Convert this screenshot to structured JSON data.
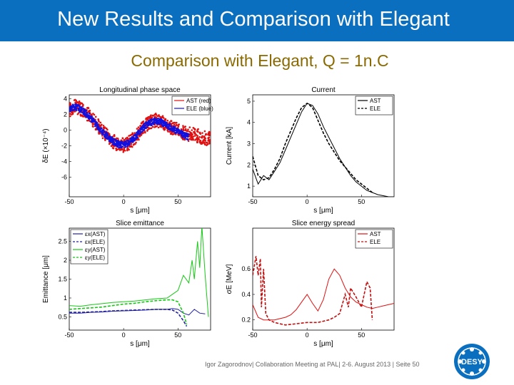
{
  "slide": {
    "title": "New Results and Comparison with Elegant",
    "subtitle": "Comparison with Elegant, Q = 1n.C",
    "footer": "Igor Zagorodnov| Collaboration Meeting at PAL| 2-6. August 2013 | Seite 50",
    "logo_text": "DESY"
  },
  "colors": {
    "title_bar": "#0b6fc0",
    "subtitle": "#8a6a00",
    "ast": "#e01010",
    "ele": "#1010e0",
    "green": "#18c818"
  },
  "chart_data": [
    {
      "type": "scatter",
      "title": "Longitudinal phase space",
      "xlabel": "s [μm]",
      "ylabel": "δE (×10⁻⁴)",
      "xlim": [
        -50,
        80
      ],
      "ylim": [
        -8.5,
        4.5
      ],
      "xticks": [
        "-50",
        "0",
        "50"
      ],
      "xtick_values": [
        -50,
        0,
        50
      ],
      "yticks": [
        "4",
        "2",
        "0",
        "-2",
        "-4",
        "-6"
      ],
      "ytick_values": [
        4,
        2,
        0,
        -2,
        -4,
        -6
      ],
      "legend": [
        "AST (red)",
        "ELE (blue)"
      ],
      "legend_position": "top-right",
      "series": [
        {
          "name": "AST (red)",
          "color": "#e01010",
          "x": [
            -50,
            -45,
            -40,
            -35,
            -30,
            -25,
            -20,
            -15,
            -10,
            -5,
            0,
            5,
            10,
            15,
            20,
            25,
            30,
            35,
            40,
            45,
            50,
            55,
            60,
            65,
            70,
            75,
            80
          ],
          "y": [
            2.5,
            3.0,
            2.8,
            2.3,
            1.6,
            0.8,
            0,
            -0.8,
            -1.4,
            -1.8,
            -1.9,
            -1.6,
            -1.0,
            -0.2,
            0.6,
            1.1,
            1.3,
            1.1,
            0.7,
            0.3,
            0,
            -0.3,
            -0.5,
            -0.6,
            -0.8,
            -1.0,
            -1.1
          ],
          "spread": 0.9
        },
        {
          "name": "ELE (blue)",
          "color": "#1010e0",
          "x": [
            -50,
            -45,
            -40,
            -35,
            -30,
            -25,
            -20,
            -15,
            -10,
            -5,
            0,
            5,
            10,
            15,
            20,
            25,
            30,
            35,
            40,
            45,
            50,
            55,
            60
          ],
          "y": [
            2.7,
            3.0,
            2.7,
            2.2,
            1.5,
            0.7,
            -0.1,
            -0.8,
            -1.4,
            -1.8,
            -1.9,
            -1.6,
            -1.0,
            -0.2,
            0.6,
            1.0,
            1.2,
            1.0,
            0.6,
            0.2,
            -0.2,
            -0.6,
            -0.9
          ],
          "spread": 0.4
        }
      ]
    },
    {
      "type": "line",
      "title": "Current",
      "xlabel": "s [μm]",
      "ylabel": "Current [kA]",
      "xlim": [
        -50,
        80
      ],
      "ylim": [
        0.5,
        5.3
      ],
      "xticks": [
        "-50",
        "0",
        "50"
      ],
      "xtick_values": [
        -50,
        0,
        50
      ],
      "yticks": [
        "5",
        "4",
        "3",
        "2",
        "1"
      ],
      "ytick_values": [
        5,
        4,
        3,
        2,
        1
      ],
      "legend": [
        "AST",
        "ELE"
      ],
      "legend_position": "top-right",
      "series": [
        {
          "name": "AST",
          "style": "solid",
          "x": [
            -50,
            -45,
            -40,
            -35,
            -30,
            -25,
            -20,
            -15,
            -10,
            -5,
            0,
            5,
            10,
            15,
            20,
            25,
            30,
            35,
            40,
            45,
            50,
            55,
            60,
            65,
            70,
            75,
            80
          ],
          "y": [
            1.8,
            1.1,
            1.5,
            1.3,
            1.7,
            2.1,
            2.7,
            3.3,
            3.9,
            4.5,
            4.9,
            4.8,
            4.4,
            3.8,
            3.3,
            2.8,
            2.3,
            1.9,
            1.5,
            1.2,
            1.0,
            0.8,
            0.7,
            0.6,
            0.55,
            0.5,
            0.5
          ]
        },
        {
          "name": "ELE",
          "style": "dashed",
          "x": [
            -50,
            -45,
            -40,
            -35,
            -30,
            -25,
            -20,
            -15,
            -10,
            -5,
            0,
            5,
            10,
            15,
            20,
            25,
            30,
            35,
            40,
            45,
            50,
            55,
            60
          ],
          "y": [
            2.4,
            1.5,
            1.3,
            1.4,
            1.8,
            2.3,
            3.0,
            3.6,
            4.2,
            4.7,
            4.9,
            4.7,
            4.1,
            3.5,
            3.0,
            2.6,
            2.2,
            1.9,
            1.6,
            1.3,
            1.1,
            0.9,
            0.7
          ]
        }
      ]
    },
    {
      "type": "line",
      "title": "Slice emittance",
      "xlabel": "s [μm]",
      "ylabel": "Emittance [μm]",
      "xlim": [
        -50,
        80
      ],
      "ylim": [
        0.15,
        2.85
      ],
      "xticks": [
        "-50",
        "0",
        "50"
      ],
      "xtick_values": [
        -50,
        0,
        50
      ],
      "yticks": [
        "2.5",
        "2",
        "1.5",
        "1",
        "0.5"
      ],
      "ytick_values": [
        2.5,
        2,
        1.5,
        1,
        0.5
      ],
      "legend": [
        "εx(AST)",
        "εx(ELE)",
        "εy(AST)",
        "εy(ELE)"
      ],
      "legend_position": "top-left",
      "series": [
        {
          "name": "εx(AST)",
          "color": "#2020a0",
          "style": "solid",
          "x": [
            -50,
            -40,
            -30,
            -20,
            -10,
            0,
            10,
            20,
            30,
            40,
            45,
            50,
            55,
            60,
            65,
            70,
            75
          ],
          "y": [
            0.6,
            0.6,
            0.62,
            0.63,
            0.65,
            0.66,
            0.67,
            0.68,
            0.7,
            0.7,
            0.72,
            0.7,
            0.6,
            0.55,
            0.7,
            0.6,
            0.58
          ]
        },
        {
          "name": "εx(ELE)",
          "color": "#2020a0",
          "style": "dashed",
          "x": [
            -50,
            -40,
            -30,
            -20,
            -10,
            0,
            10,
            20,
            30,
            40,
            45,
            50,
            55,
            58
          ],
          "y": [
            0.62,
            0.62,
            0.63,
            0.64,
            0.66,
            0.67,
            0.68,
            0.69,
            0.7,
            0.7,
            0.68,
            0.6,
            0.4,
            0.25
          ]
        },
        {
          "name": "εy(AST)",
          "color": "#18c818",
          "style": "solid",
          "x": [
            -50,
            -40,
            -30,
            -20,
            -10,
            0,
            10,
            20,
            30,
            40,
            45,
            50,
            55,
            60,
            63,
            65,
            68,
            70,
            72,
            75,
            78
          ],
          "y": [
            0.8,
            0.78,
            0.82,
            0.85,
            0.88,
            0.9,
            0.92,
            0.95,
            0.98,
            1.0,
            1.1,
            1.2,
            1.6,
            1.4,
            2.0,
            1.5,
            2.5,
            1.8,
            2.9,
            1.6,
            0.5
          ]
        },
        {
          "name": "εy(ELE)",
          "color": "#18c818",
          "style": "dashed",
          "x": [
            -50,
            -40,
            -30,
            -20,
            -10,
            0,
            10,
            20,
            30,
            40,
            45,
            50,
            55,
            58
          ],
          "y": [
            0.7,
            0.72,
            0.74,
            0.76,
            0.8,
            0.84,
            0.86,
            0.9,
            0.93,
            0.95,
            0.95,
            0.9,
            0.6,
            0.3
          ]
        }
      ]
    },
    {
      "type": "line",
      "title": "Slice energy spread",
      "xlabel": "s [μm]",
      "ylabel": "σE [MeV]",
      "xlim": [
        -50,
        80
      ],
      "ylim": [
        0.12,
        0.92
      ],
      "xticks": [
        "-50",
        "0",
        "50"
      ],
      "xtick_values": [
        -50,
        0,
        50
      ],
      "yticks": [
        "0.6",
        "0.4",
        "0.2"
      ],
      "ytick_values": [
        0.6,
        0.4,
        0.2
      ],
      "legend": [
        "AST",
        "ELE"
      ],
      "legend_position": "top-right",
      "series": [
        {
          "name": "AST",
          "color": "#e01010",
          "style": "solid",
          "x": [
            -50,
            -45,
            -40,
            -35,
            -30,
            -25,
            -20,
            -15,
            -10,
            -5,
            0,
            5,
            10,
            15,
            20,
            25,
            30,
            35,
            40,
            45,
            50,
            55,
            60,
            65,
            70,
            75,
            80
          ],
          "y": [
            0.32,
            0.22,
            0.2,
            0.2,
            0.2,
            0.21,
            0.22,
            0.24,
            0.28,
            0.34,
            0.4,
            0.33,
            0.27,
            0.36,
            0.52,
            0.6,
            0.55,
            0.45,
            0.38,
            0.34,
            0.32,
            0.3,
            0.29,
            0.3,
            0.31,
            0.32,
            0.33
          ]
        },
        {
          "name": "ELE",
          "color": "#c01010",
          "style": "dashed",
          "x": [
            -50,
            -47,
            -45,
            -43,
            -42,
            -40,
            -38,
            -35,
            -30,
            -25,
            -20,
            -10,
            0,
            10,
            20,
            25,
            30,
            35,
            38,
            40,
            45,
            50,
            55,
            58,
            60
          ],
          "y": [
            0.55,
            0.7,
            0.55,
            0.68,
            0.3,
            0.6,
            0.25,
            0.2,
            0.18,
            0.17,
            0.16,
            0.17,
            0.18,
            0.18,
            0.2,
            0.22,
            0.25,
            0.4,
            0.3,
            0.45,
            0.38,
            0.3,
            0.5,
            0.45,
            0.2
          ]
        }
      ]
    }
  ]
}
